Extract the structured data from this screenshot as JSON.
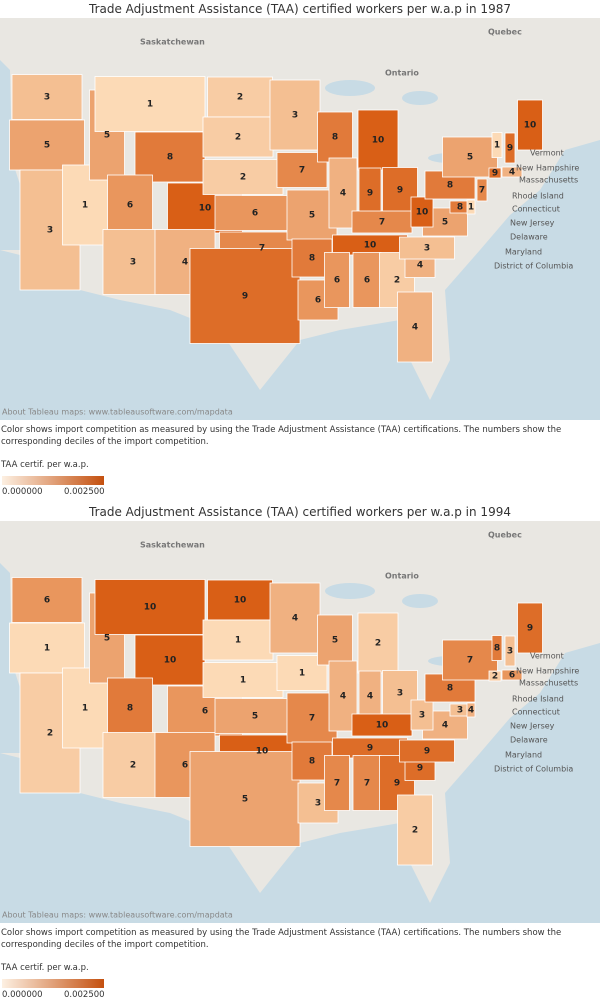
{
  "panels": [
    {
      "title": "Trade Adjustment Assistance (TAA) certified workers per w.a.p in 1987",
      "map_labels": [
        "Saskatchewan",
        "Ontario",
        "Quebec",
        "Vermont",
        "New Hampshire",
        "Massachusetts",
        "Rhode Island",
        "Connecticut",
        "New Jersey",
        "Delaware",
        "Maryland",
        "District of Columbia"
      ],
      "deciles": [
        3,
        5,
        3,
        1,
        5,
        1,
        8,
        6,
        10,
        3,
        4,
        2,
        2,
        2,
        6,
        7,
        9,
        3,
        7,
        5,
        8,
        6,
        8,
        4,
        10,
        9,
        9,
        7,
        10,
        6,
        6,
        2,
        4,
        4,
        3,
        5,
        10,
        8,
        5,
        8,
        1,
        1,
        9,
        10,
        9,
        4,
        7
      ],
      "attribution": "About Tableau maps: www.tableausoftware.com/mapdata",
      "caption": "Color shows import competition as measured by using the Trade Adjustment Assistance (TAA) certifications. The numbers show the corresponding deciles of the import competition.",
      "legend": {
        "title": "TAA certif. per w.a.p.",
        "min_label": "0.000000",
        "max_label": "0.002500"
      }
    },
    {
      "title": "Trade Adjustment Assistance (TAA) certified workers per w.a.p in 1994",
      "map_labels": [
        "Saskatchewan",
        "Ontario",
        "Quebec",
        "Vermont",
        "New Hampshire",
        "Massachusetts",
        "Rhode Island",
        "Connecticut",
        "New Jersey",
        "Delaware",
        "Maryland",
        "District of Columbia"
      ],
      "deciles": [
        6,
        1,
        2,
        1,
        5,
        10,
        10,
        8,
        6,
        2,
        6,
        10,
        1,
        1,
        5,
        10,
        5,
        4,
        1,
        7,
        8,
        3,
        5,
        4,
        2,
        4,
        3,
        10,
        9,
        7,
        7,
        9,
        2,
        9,
        9,
        4,
        3,
        8,
        7,
        3,
        4,
        8,
        3,
        9,
        2,
        6
      ],
      "attribution": "About Tableau maps: www.tableausoftware.com/mapdata",
      "caption": "Color shows import competition as measured by using the Trade Adjustment Assistance (TAA) certifications. The numbers show the corresponding deciles of the import competition.",
      "legend": {
        "title": "TAA certif. per w.a.p.",
        "min_label": "0.000000",
        "max_label": "0.002500"
      }
    }
  ]
}
